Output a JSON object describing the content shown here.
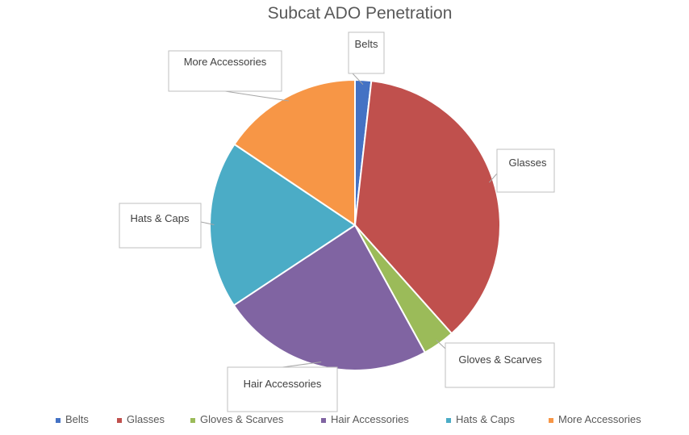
{
  "chart_data": {
    "type": "pie",
    "title": "Subcat ADO Penetration",
    "slices": [
      {
        "name": "Belts",
        "value": 1.8,
        "color": "#4472C4"
      },
      {
        "name": "Glasses",
        "value": 36.6,
        "color": "#C0504D"
      },
      {
        "name": "Gloves & Scarves",
        "value": 3.6,
        "color": "#9BBB59"
      },
      {
        "name": "Hair Accessories",
        "value": 23.7,
        "color": "#8064A2"
      },
      {
        "name": "Hats & Caps",
        "value": 18.7,
        "color": "#4BACC6"
      },
      {
        "name": "More Accessories",
        "value": 15.6,
        "color": "#F79646"
      }
    ],
    "legend_position": "bottom",
    "data_labels": "category names in callouts"
  }
}
